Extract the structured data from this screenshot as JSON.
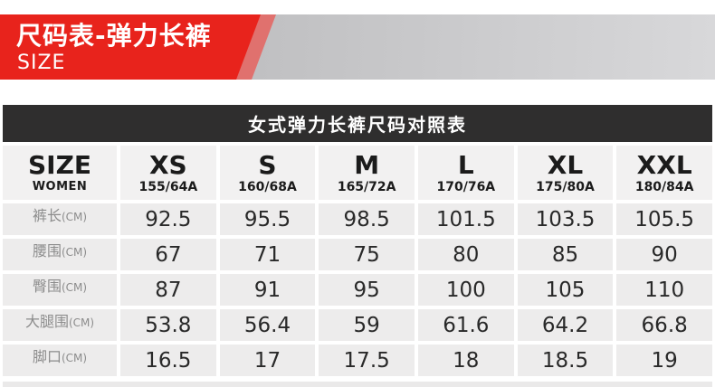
{
  "banner": {
    "title": "尺码表-弹力长裤",
    "subtitle": "SIZE",
    "colors": {
      "red": "#e8231c",
      "pink_stripe": "#e0716e",
      "gray_band": "#c0c0c2"
    }
  },
  "table_title": "女式弹力长裤尺码对照表",
  "size_table": {
    "header": {
      "main": "SIZE",
      "sub": "WOMEN"
    },
    "columns": [
      {
        "size": "XS",
        "spec": "155/64A"
      },
      {
        "size": "S",
        "spec": "160/68A"
      },
      {
        "size": "M",
        "spec": "165/72A"
      },
      {
        "size": "L",
        "spec": "170/76A"
      },
      {
        "size": "XL",
        "spec": "175/80A"
      },
      {
        "size": "XXL",
        "spec": "180/84A"
      }
    ],
    "rows": [
      {
        "label": "裤长",
        "unit": "(CM)",
        "values": [
          "92.5",
          "95.5",
          "98.5",
          "101.5",
          "103.5",
          "105.5"
        ]
      },
      {
        "label": "腰围",
        "unit": "(CM)",
        "values": [
          "67",
          "71",
          "75",
          "80",
          "85",
          "90"
        ]
      },
      {
        "label": "臀围",
        "unit": "(CM)",
        "values": [
          "87",
          "91",
          "95",
          "100",
          "105",
          "110"
        ]
      },
      {
        "label": "大腿围",
        "unit": "(CM)",
        "values": [
          "53.8",
          "56.4",
          "59",
          "61.6",
          "64.2",
          "66.8"
        ]
      },
      {
        "label": "脚口",
        "unit": "(CM)",
        "values": [
          "16.5",
          "17",
          "17.5",
          "18",
          "18.5",
          "19"
        ]
      }
    ]
  },
  "chart_data": {
    "type": "table",
    "title": "女式弹力长裤尺码对照表",
    "columns": [
      "XS 155/64A",
      "S 160/68A",
      "M 165/72A",
      "L 170/76A",
      "XL 175/80A",
      "XXL 180/84A"
    ],
    "rows": [
      {
        "name": "裤长(CM)",
        "values": [
          92.5,
          95.5,
          98.5,
          101.5,
          103.5,
          105.5
        ]
      },
      {
        "name": "腰围(CM)",
        "values": [
          67,
          71,
          75,
          80,
          85,
          90
        ]
      },
      {
        "name": "臀围(CM)",
        "values": [
          87,
          91,
          95,
          100,
          105,
          110
        ]
      },
      {
        "name": "大腿围(CM)",
        "values": [
          53.8,
          56.4,
          59,
          61.6,
          64.2,
          66.8
        ]
      },
      {
        "name": "脚口(CM)",
        "values": [
          16.5,
          17,
          17.5,
          18,
          18.5,
          19
        ]
      }
    ]
  }
}
